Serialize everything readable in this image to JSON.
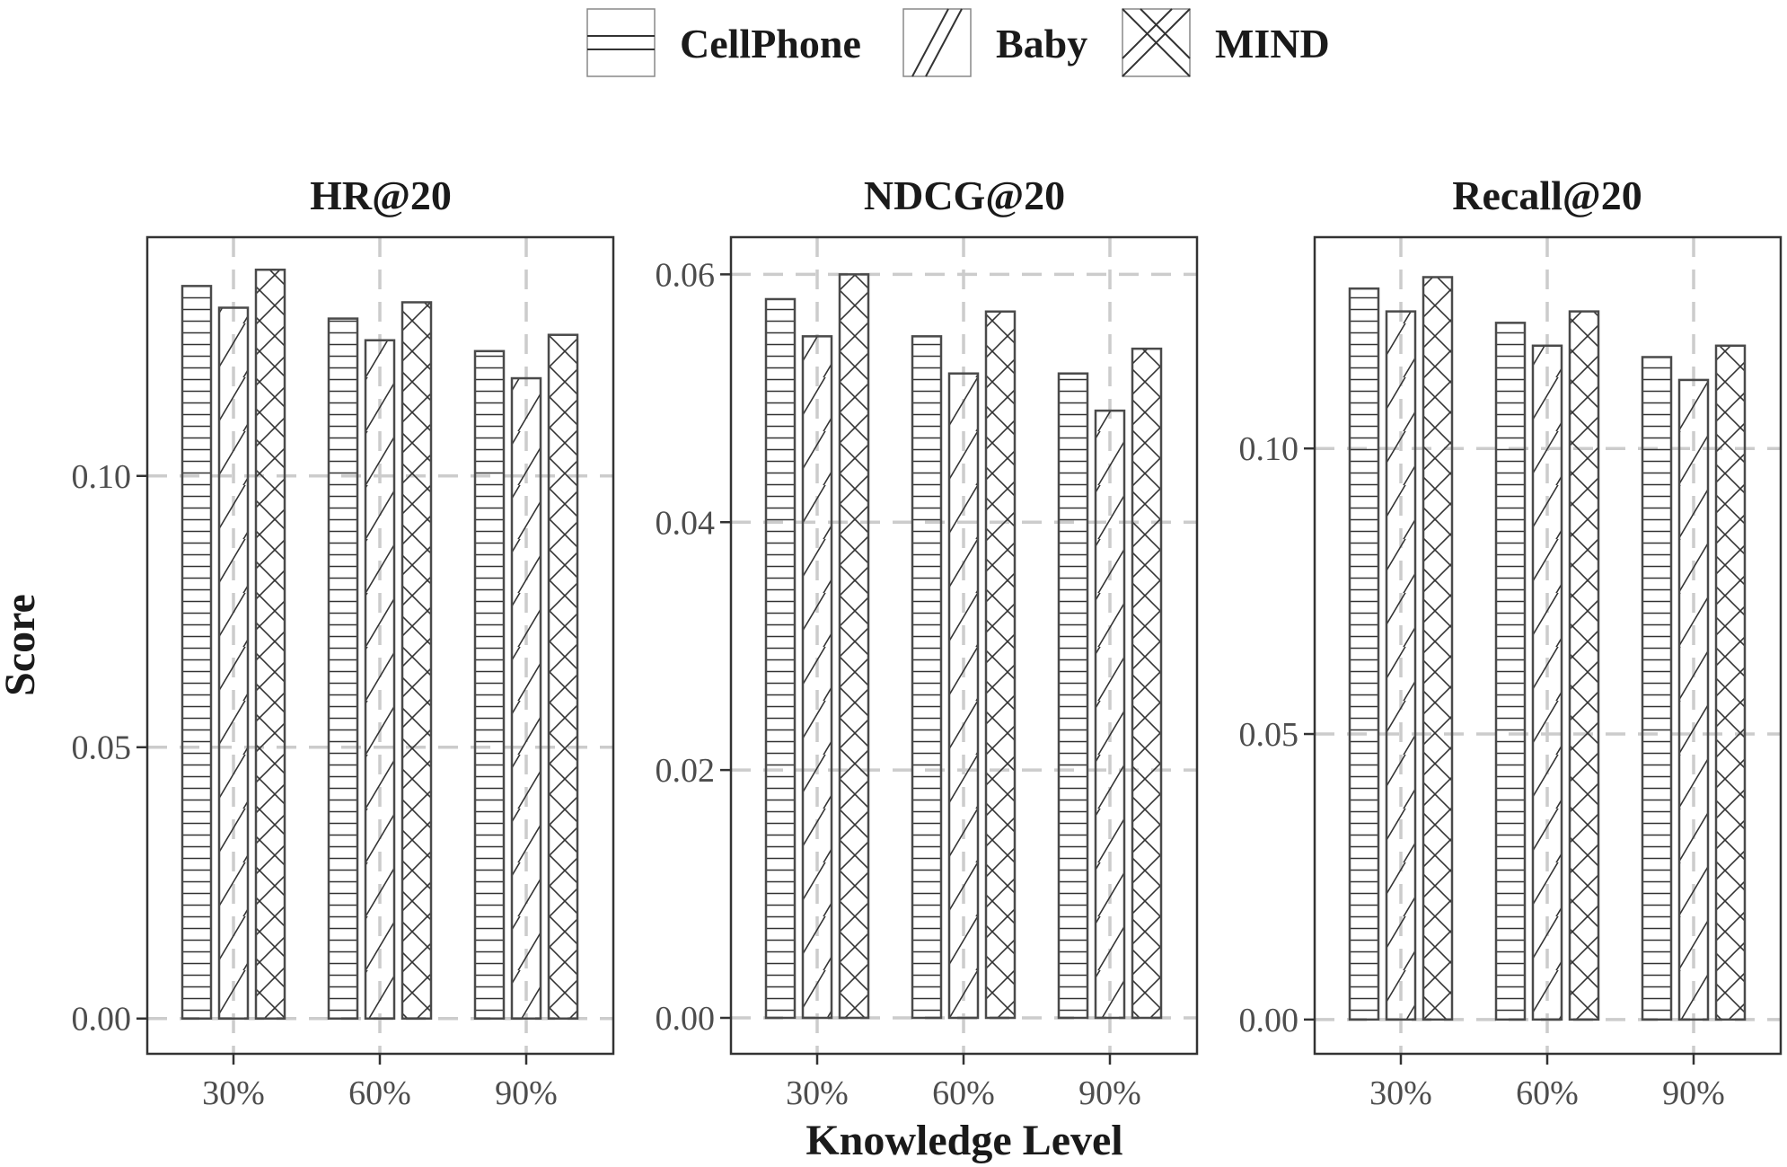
{
  "chart_data": {
    "type": "bar",
    "legend": {
      "position": "top",
      "entries": [
        {
          "name": "CellPhone",
          "pattern": "horizontal-lines"
        },
        {
          "name": "Baby",
          "pattern": "diagonal-lines"
        },
        {
          "name": "MIND",
          "pattern": "crosshatch"
        }
      ]
    },
    "xlabel": "Knowledge Level",
    "ylabel": "Score",
    "categories": [
      "30%",
      "60%",
      "90%"
    ],
    "grid": true,
    "colors": {
      "bar_fill": "#ffffff",
      "bar_stroke": "#4a4a4a",
      "grid": "#cccccc",
      "frame": "#333333"
    },
    "panels": [
      {
        "title": "HR@20",
        "ylim": [
          -0.0065,
          0.144
        ],
        "yticks": [
          0.0,
          0.05,
          0.1
        ],
        "ytick_labels": [
          "0.00",
          "0.05",
          "0.10"
        ],
        "series": [
          {
            "name": "CellPhone",
            "values": [
              0.135,
              0.129,
              0.123
            ]
          },
          {
            "name": "Baby",
            "values": [
              0.131,
              0.125,
              0.118
            ]
          },
          {
            "name": "MIND",
            "values": [
              0.138,
              0.132,
              0.126
            ]
          }
        ]
      },
      {
        "title": "NDCG@20",
        "ylim": [
          -0.0029,
          0.063
        ],
        "yticks": [
          0.0,
          0.02,
          0.04,
          0.06
        ],
        "ytick_labels": [
          "0.00",
          "0.02",
          "0.04",
          "0.06"
        ],
        "series": [
          {
            "name": "CellPhone",
            "values": [
              0.058,
              0.055,
              0.052
            ]
          },
          {
            "name": "Baby",
            "values": [
              0.055,
              0.052,
              0.049
            ]
          },
          {
            "name": "MIND",
            "values": [
              0.06,
              0.057,
              0.054
            ]
          }
        ]
      },
      {
        "title": "Recall@20",
        "ylim": [
          -0.006,
          0.137
        ],
        "yticks": [
          0.0,
          0.05,
          0.1
        ],
        "ytick_labels": [
          "0.00",
          "0.05",
          "0.10"
        ],
        "series": [
          {
            "name": "CellPhone",
            "values": [
              0.128,
              0.122,
              0.116
            ]
          },
          {
            "name": "Baby",
            "values": [
              0.124,
              0.118,
              0.112
            ]
          },
          {
            "name": "MIND",
            "values": [
              0.13,
              0.124,
              0.118
            ]
          }
        ]
      }
    ]
  }
}
